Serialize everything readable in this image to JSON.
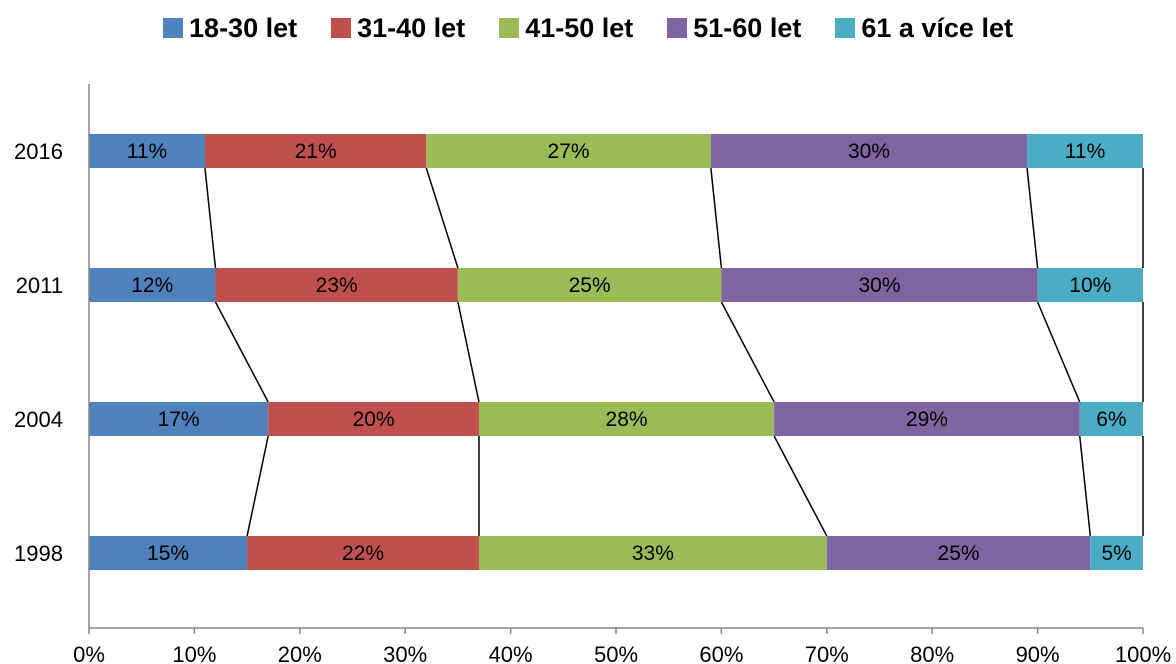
{
  "chart_data": {
    "type": "bar",
    "orientation": "horizontal",
    "stacked": true,
    "percent_stacked": true,
    "categories": [
      "2016",
      "2011",
      "2004",
      "1998"
    ],
    "series": [
      {
        "name": "18-30 let",
        "color": "#4F81BD",
        "values": [
          11,
          12,
          17,
          15
        ],
        "labels": [
          "11%",
          "12%",
          "17%",
          "15%"
        ]
      },
      {
        "name": "31-40 let",
        "color": "#C0504D",
        "values": [
          21,
          23,
          20,
          22
        ],
        "labels": [
          "21%",
          "23%",
          "20%",
          "22%"
        ]
      },
      {
        "name": "41-50 let",
        "color": "#9BBB59",
        "values": [
          27,
          25,
          28,
          33
        ],
        "labels": [
          "27%",
          "25%",
          "28%",
          "33%"
        ]
      },
      {
        "name": "51-60 let",
        "color": "#8064A2",
        "values": [
          30,
          30,
          29,
          25
        ],
        "labels": [
          "30%",
          "30%",
          "29%",
          "25%"
        ]
      },
      {
        "name": "61 a více let",
        "color": "#4BACC6",
        "values": [
          11,
          10,
          6,
          5
        ],
        "labels": [
          "11%",
          "10%",
          "6%",
          "5%"
        ]
      }
    ],
    "xlim": [
      0,
      100
    ],
    "xticks": [
      "0%",
      "10%",
      "20%",
      "30%",
      "40%",
      "50%",
      "60%",
      "70%",
      "80%",
      "90%",
      "100%"
    ],
    "series_lines": true,
    "grid": false,
    "legend_position": "top"
  }
}
